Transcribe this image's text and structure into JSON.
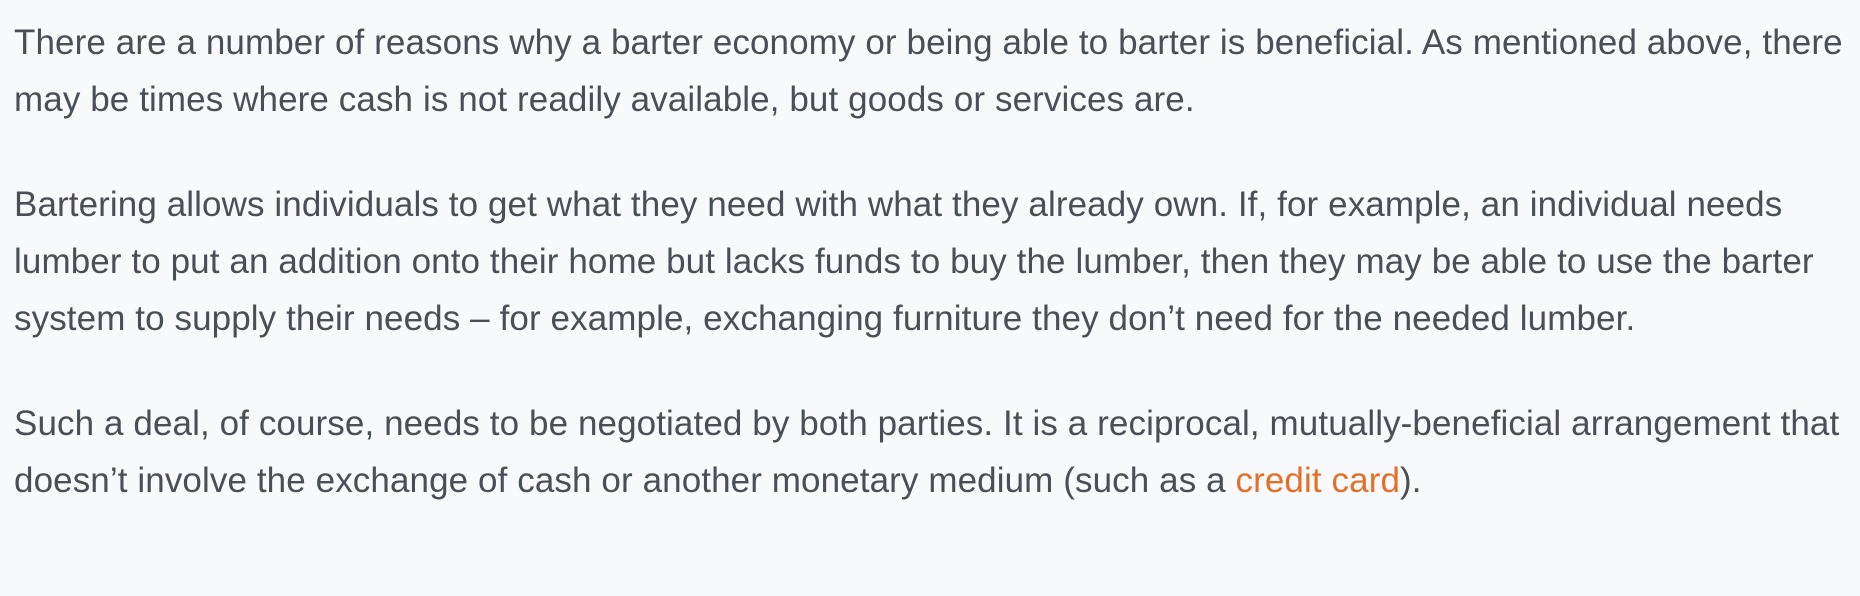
{
  "article": {
    "paragraph_1": "There are a number of reasons why a barter economy or being able to barter is beneficial. As mentioned above, there may be times where cash is not readily available, but goods or services are.",
    "paragraph_2": "Bartering allows individuals to get what they need with what they already own. If, for example, an individual needs lumber to put an addition onto their home but lacks funds to buy the lumber, then they may be able to use the barter system to supply their needs – for example, exchanging furniture they don’t need for the needed lumber.",
    "paragraph_3": {
      "before_link": "Such a deal, of course, needs to be negotiated by both parties. It is a reciprocal, mutually-beneficial arrangement that doesn’t involve the exchange of cash or another monetary medium (such as a ",
      "link_text": "credit card",
      "after_link": ")."
    }
  },
  "colors": {
    "text": "#4a4f57",
    "link": "#e2702a",
    "background": "#f8f9fb"
  }
}
